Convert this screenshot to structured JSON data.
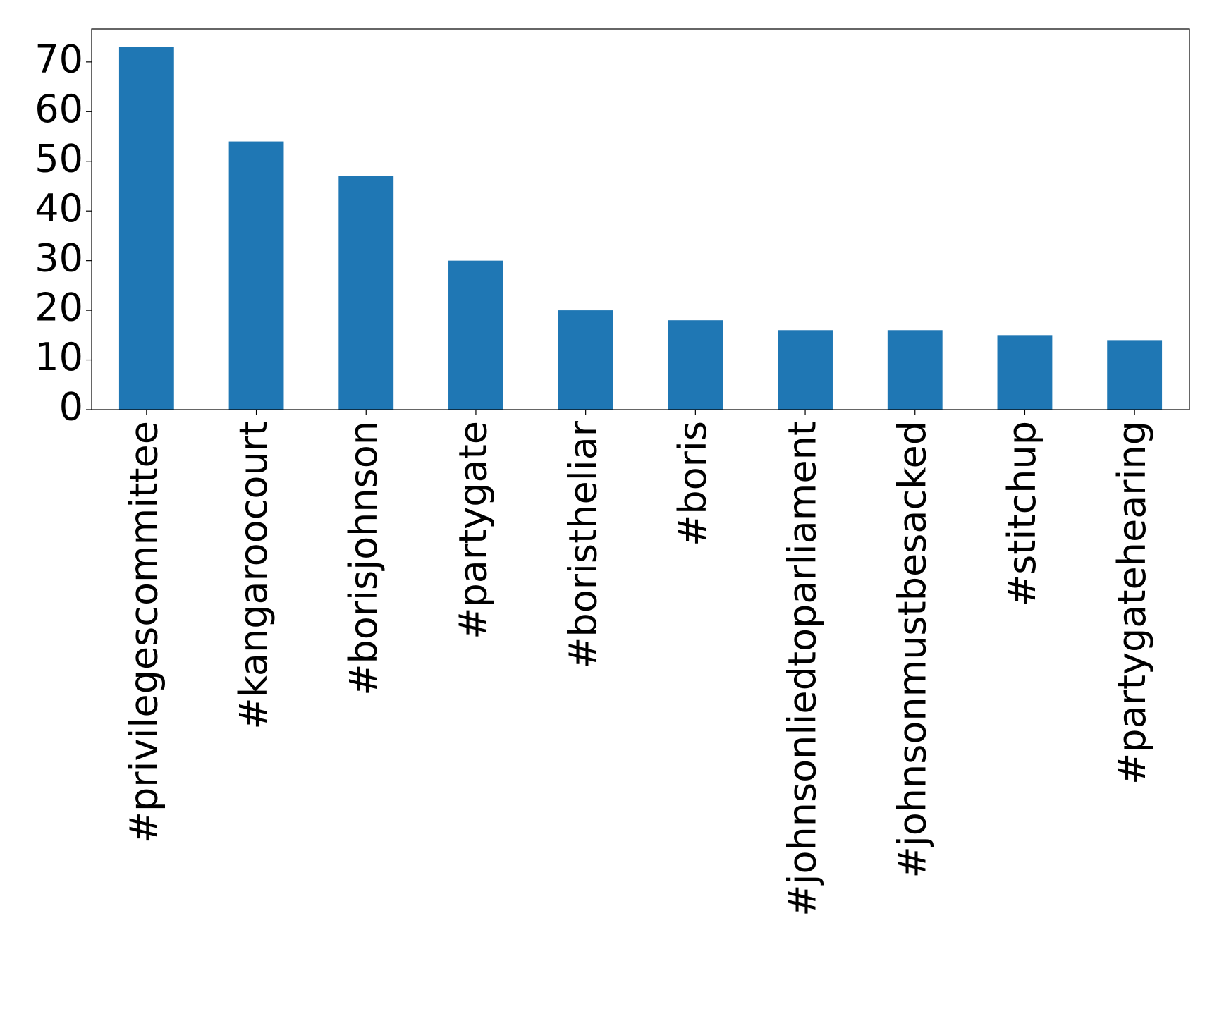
{
  "chart_data": {
    "type": "bar",
    "categories": [
      "#privilegescommittee",
      "#kangaroocourt",
      "#borisjohnson",
      "#partygate",
      "#boristheliar",
      "#boris",
      "#johnsonliedtoparliament",
      "#johnsonmustbesacked",
      "#stitchup",
      "#partygatehearing"
    ],
    "values": [
      73,
      54,
      47,
      30,
      20,
      18,
      16,
      16,
      15,
      14
    ],
    "color": "#1f77b4",
    "ylim": [
      0,
      76.65
    ],
    "yticks": [
      0,
      10,
      20,
      30,
      40,
      50,
      60,
      70
    ],
    "grid": false
  }
}
